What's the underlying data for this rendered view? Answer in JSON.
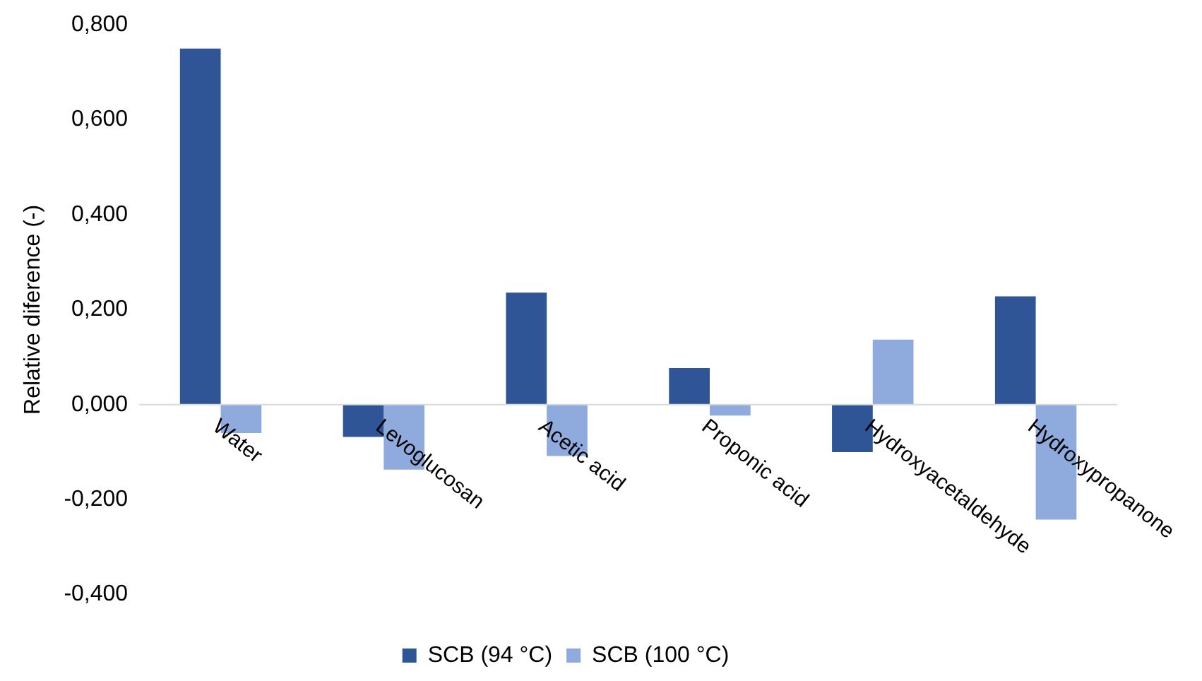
{
  "chart_data": {
    "type": "bar",
    "ylabel": "Relative diference (-)",
    "categories": [
      "Water",
      "Levoglucosan",
      "Acetic acid",
      "Proponic acid",
      "Hydroxyacetaldehyde",
      "Hydroxypropanone"
    ],
    "series": [
      {
        "name": "SCB (94 °C)",
        "color": "#2f5597",
        "values": [
          0.75,
          -0.068,
          0.236,
          0.077,
          -0.1,
          0.228
        ]
      },
      {
        "name": "SCB (100 °C)",
        "color": "#8faadc",
        "values": [
          -0.06,
          -0.137,
          -0.108,
          -0.023,
          0.137,
          -0.242
        ]
      }
    ],
    "ylim": [
      -0.4,
      0.8
    ],
    "yticks": [
      {
        "value": -0.4,
        "label": "-0,400"
      },
      {
        "value": -0.2,
        "label": "-0,200"
      },
      {
        "value": 0,
        "label": "0,000"
      },
      {
        "value": 0.2,
        "label": "0,200"
      },
      {
        "value": 0.4,
        "label": "0,400"
      },
      {
        "value": 0.6,
        "label": "0,600"
      },
      {
        "value": 0.8,
        "label": "0,800"
      }
    ],
    "grid": false,
    "legend": "bottom"
  }
}
